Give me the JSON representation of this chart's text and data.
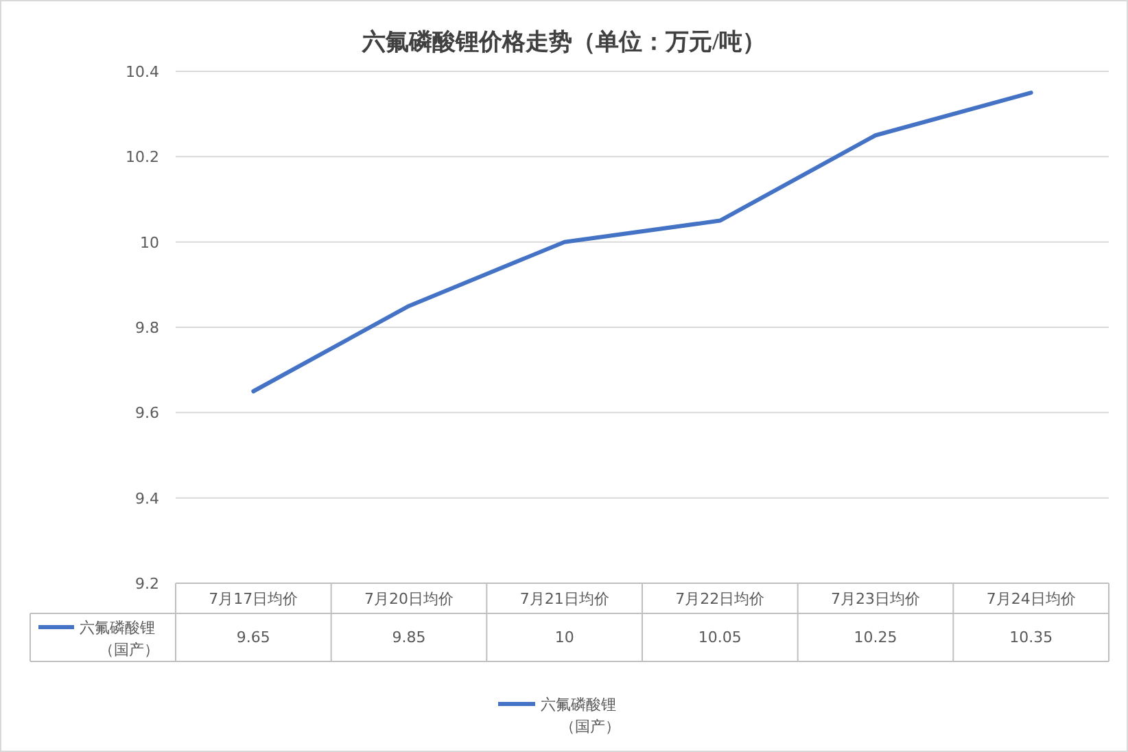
{
  "chart_data": {
    "type": "line",
    "title": "六氟磷酸锂价格走势（单位：万元/吨）",
    "categories": [
      "7月17日均价",
      "7月20日均价",
      "7月21日均价",
      "7月22日均价",
      "7月23日均价",
      "7月24日均价"
    ],
    "series": [
      {
        "name": "六氟磷酸锂（国产）",
        "color": "#4472c4",
        "values": [
          9.65,
          9.85,
          10,
          10.05,
          10.25,
          10.35
        ]
      }
    ],
    "ylim": [
      9.2,
      10.4
    ],
    "yticks": [
      9.2,
      9.4,
      9.6,
      9.8,
      10,
      10.2,
      10.4
    ],
    "grid": "y",
    "legend": "bottom",
    "data_labels": true,
    "marker": "none",
    "line_style": "solid"
  }
}
